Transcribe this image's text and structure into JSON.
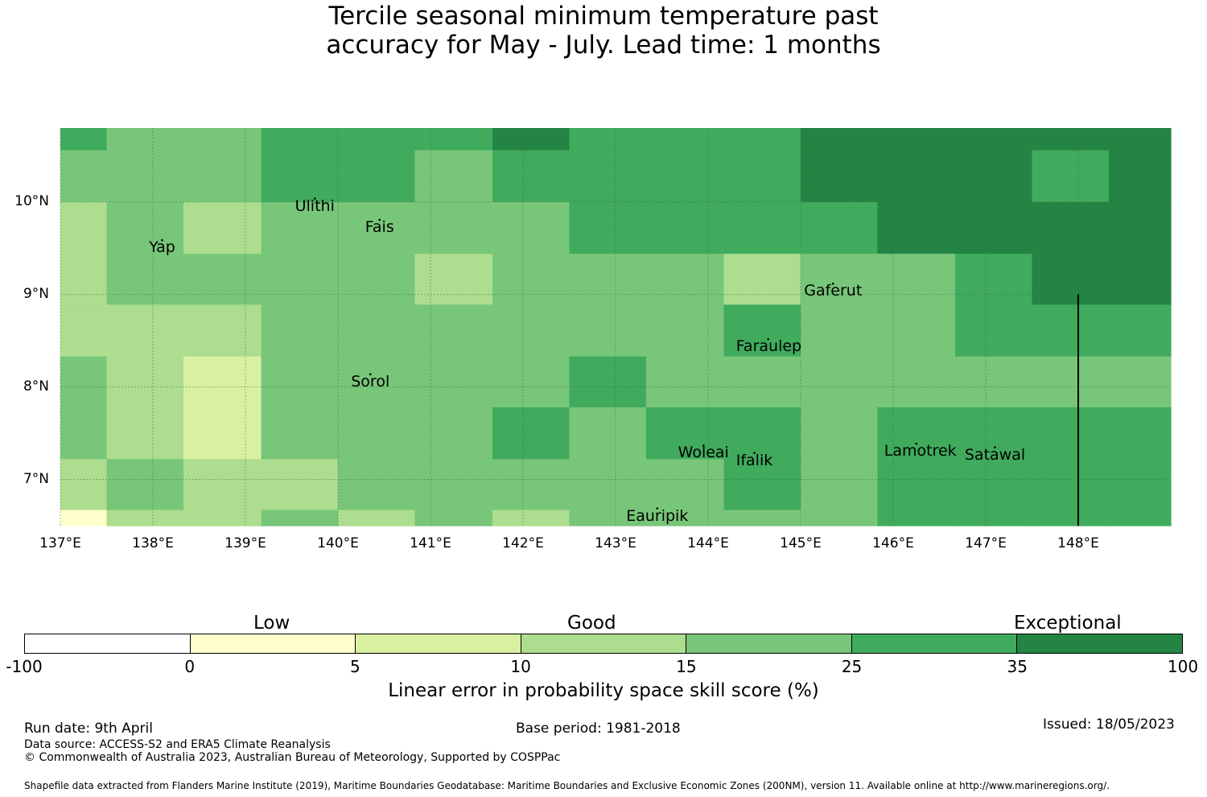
{
  "title": {
    "line1": "Tercile seasonal minimum temperature past",
    "line2": "accuracy for May - July. Lead time: 1 months"
  },
  "map": {
    "lon_range": [
      137.0,
      149.0
    ],
    "lat_range": [
      6.5,
      10.8
    ],
    "x_ticks": [
      {
        "value": 137,
        "label": "137°E"
      },
      {
        "value": 138,
        "label": "138°E"
      },
      {
        "value": 139,
        "label": "139°E"
      },
      {
        "value": 140,
        "label": "140°E"
      },
      {
        "value": 141,
        "label": "141°E"
      },
      {
        "value": 142,
        "label": "142°E"
      },
      {
        "value": 143,
        "label": "143°E"
      },
      {
        "value": 144,
        "label": "144°E"
      },
      {
        "value": 145,
        "label": "145°E"
      },
      {
        "value": 146,
        "label": "146°E"
      },
      {
        "value": 147,
        "label": "147°E"
      },
      {
        "value": 148,
        "label": "148°E"
      }
    ],
    "y_ticks": [
      {
        "value": 10,
        "label": "10°N"
      },
      {
        "value": 9,
        "label": "9°N"
      },
      {
        "value": 8,
        "label": "8°N"
      },
      {
        "value": 7,
        "label": "7°N"
      }
    ],
    "places": [
      {
        "name": "Ulithi",
        "lon": 139.75,
        "lat": 9.95
      },
      {
        "name": "Fais",
        "lon": 140.45,
        "lat": 9.72
      },
      {
        "name": "Yap",
        "lon": 138.1,
        "lat": 9.5
      },
      {
        "name": "Gaferut",
        "lon": 145.35,
        "lat": 9.03
      },
      {
        "name": "Faraulep",
        "lon": 144.65,
        "lat": 8.43
      },
      {
        "name": "Sorol",
        "lon": 140.35,
        "lat": 8.05
      },
      {
        "name": "Woleai",
        "lon": 143.95,
        "lat": 7.28
      },
      {
        "name": "Ifalik",
        "lon": 144.5,
        "lat": 7.2
      },
      {
        "name": "Lamotrek",
        "lon": 146.25,
        "lat": 7.3
      },
      {
        "name": "Satawal",
        "lon": 147.1,
        "lat": 7.26
      },
      {
        "name": "Eauripik",
        "lon": 143.45,
        "lat": 6.6
      }
    ]
  },
  "grid": {
    "lon_edges": [
      137.0,
      137.5,
      138.33,
      139.17,
      140.0,
      140.83,
      141.67,
      142.5,
      143.33,
      144.17,
      145.0,
      145.83,
      146.67,
      147.5,
      148.33,
      149.0
    ],
    "lat_edges": [
      10.8,
      10.56,
      10.0,
      9.44,
      8.89,
      8.33,
      7.78,
      7.22,
      6.67,
      6.5
    ],
    "levels": [
      [
        5,
        4,
        4,
        5,
        5,
        5,
        6,
        5,
        5,
        5,
        6,
        6,
        6,
        6,
        6
      ],
      [
        4,
        4,
        4,
        5,
        5,
        4,
        5,
        5,
        5,
        5,
        6,
        6,
        6,
        5,
        6
      ],
      [
        3,
        4,
        3,
        4,
        4,
        4,
        4,
        5,
        5,
        5,
        5,
        6,
        6,
        6,
        6
      ],
      [
        3,
        4,
        4,
        4,
        4,
        3,
        4,
        4,
        4,
        3,
        4,
        4,
        5,
        6,
        6
      ],
      [
        3,
        3,
        3,
        4,
        4,
        4,
        4,
        4,
        4,
        5,
        4,
        4,
        5,
        5,
        5
      ],
      [
        4,
        3,
        2,
        4,
        4,
        4,
        4,
        5,
        4,
        4,
        4,
        4,
        4,
        4,
        4
      ],
      [
        4,
        3,
        2,
        4,
        4,
        4,
        5,
        4,
        5,
        5,
        4,
        5,
        5,
        5,
        5
      ],
      [
        3,
        4,
        3,
        3,
        4,
        4,
        4,
        4,
        4,
        5,
        4,
        5,
        5,
        5,
        5
      ],
      [
        1,
        3,
        3,
        4,
        3,
        4,
        3,
        4,
        4,
        4,
        4,
        5,
        5,
        5,
        5
      ]
    ]
  },
  "colorbar": {
    "colors": [
      "#ffffff",
      "#ffffcc",
      "#d9f0a3",
      "#addd8e",
      "#78c679",
      "#41ab5d",
      "#238443"
    ],
    "boundaries": [
      "-100",
      "0",
      "5",
      "10",
      "15",
      "25",
      "35",
      "100"
    ],
    "categories": [
      "Low",
      "Good",
      "Exceptional"
    ],
    "label": "Linear error in probability space skill score (%)"
  },
  "footer": {
    "run_date": "Run date: 9th April",
    "base_period": "Base period: 1981-2018",
    "issued": "Issued: 18/05/2023",
    "data_source": "Data source: ACCESS-S2 and ERA5 Climate Reanalysis",
    "copyright": "© Commonwealth of Australia 2023, Australian Bureau of Meteorology, Supported by COSPPac",
    "shapefile": "Shapefile data extracted from Flanders Marine Institute (2019), Maritime Boundaries Geodatabase: Maritime Boundaries and Exclusive Economic Zones (200NM), version 11. Available online at http://www.marineregions.org/."
  }
}
